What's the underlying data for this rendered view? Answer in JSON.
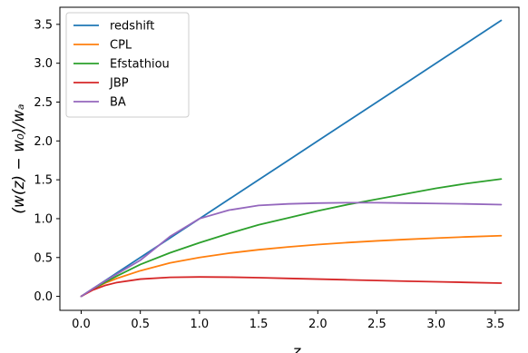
{
  "chart_data": {
    "type": "line",
    "title": "",
    "xlabel": "z",
    "ylabel": "(w(z) − w₀)/wₐ",
    "xlim": [
      -0.18,
      3.7
    ],
    "ylim": [
      -0.18,
      3.72
    ],
    "xticks": [
      "0.0",
      "0.5",
      "1.0",
      "1.5",
      "2.0",
      "2.5",
      "3.0",
      "3.5"
    ],
    "yticks": [
      "0.0",
      "0.5",
      "1.0",
      "1.5",
      "2.0",
      "2.5",
      "3.0",
      "3.5"
    ],
    "grid": false,
    "legend_position": "upper-left",
    "x": [
      0,
      0.1,
      0.2,
      0.3,
      0.5,
      0.75,
      1.0,
      1.25,
      1.5,
      1.75,
      2.0,
      2.25,
      2.5,
      2.75,
      3.0,
      3.25,
      3.55
    ],
    "series": [
      {
        "name": "redshift",
        "color": "#1f77b4",
        "values": [
          0,
          0.1,
          0.2,
          0.3,
          0.5,
          0.75,
          1.0,
          1.25,
          1.5,
          1.75,
          2.0,
          2.25,
          2.5,
          2.75,
          3.0,
          3.25,
          3.55
        ]
      },
      {
        "name": "CPL",
        "color": "#ff7f0e",
        "values": [
          0,
          0.09,
          0.17,
          0.23,
          0.33,
          0.43,
          0.5,
          0.556,
          0.6,
          0.636,
          0.667,
          0.692,
          0.714,
          0.733,
          0.75,
          0.765,
          0.78
        ]
      },
      {
        "name": "Efstathiou",
        "color": "#2ca02c",
        "values": [
          0,
          0.095,
          0.18,
          0.26,
          0.41,
          0.56,
          0.69,
          0.81,
          0.92,
          1.01,
          1.1,
          1.18,
          1.25,
          1.32,
          1.39,
          1.45,
          1.51
        ]
      },
      {
        "name": "JBP",
        "color": "#d62728",
        "values": [
          0,
          0.083,
          0.139,
          0.178,
          0.222,
          0.245,
          0.25,
          0.247,
          0.24,
          0.231,
          0.222,
          0.213,
          0.204,
          0.195,
          0.188,
          0.18,
          0.17
        ]
      },
      {
        "name": "BA",
        "color": "#9467bd",
        "values": [
          0,
          0.1,
          0.196,
          0.286,
          0.465,
          0.77,
          1.0,
          1.11,
          1.17,
          1.19,
          1.2,
          1.205,
          1.205,
          1.2,
          1.195,
          1.19,
          1.18
        ]
      }
    ]
  }
}
